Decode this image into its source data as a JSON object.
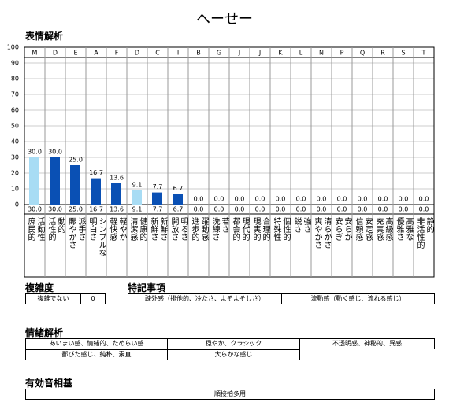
{
  "chart_data": {
    "type": "bar",
    "title": "へーせー",
    "subtitle": "表情解析",
    "categories": [
      "M",
      "D",
      "E",
      "A",
      "F",
      "D",
      "C",
      "I",
      "B",
      "G",
      "J",
      "J",
      "K",
      "L",
      "N",
      "P",
      "Q",
      "R",
      "S",
      "T"
    ],
    "descriptions": [
      "活動性\n庶民的",
      "動的\n活性的",
      "派手さ\n賑やかさ",
      "シンプルな\n明白さ",
      "軽やか\n軽快感",
      "健康的\n清潔感",
      "新鮮さ\n新鮮さ",
      "明るさ\n開放さ",
      "躍動感\n進歩的",
      "若さ\n洗練さ",
      "現代的\n都会的",
      "合理的\n現実的",
      "個性的\n特殊性",
      "強さ\n鋭さ",
      "清らかさ\n爽やかさ",
      "安らか\n安らぎ",
      "安定感\n信頼感",
      "高級感\n充実感",
      "高雅な\n優雅さ",
      "静的\n非活性的"
    ],
    "values": [
      30,
      30,
      25,
      16.7,
      13.6,
      9.1,
      7.7,
      6.7,
      0,
      0,
      0,
      0,
      0,
      0,
      0,
      0,
      0,
      0,
      0,
      0
    ],
    "value_labels": [
      "30.0",
      "30.0",
      "25.0",
      "16.7",
      "13.6",
      "9.1",
      "7.7",
      "6.7",
      "0.0",
      "0.0",
      "0.0",
      "0.0",
      "0.0",
      "0.0",
      "0.0",
      "0.0",
      "0.0",
      "0.0",
      "0.0",
      "0.0"
    ],
    "colors": [
      "#a8dcf4",
      "#0a50b4",
      "#0a50b4",
      "#0a50b4",
      "#0a50b4",
      "#a8dcf4",
      "#0a50b4",
      "#0a50b4",
      "#0a50b4",
      "#0a50b4",
      "#0a50b4",
      "#0a50b4",
      "#0a50b4",
      "#0a50b4",
      "#0a50b4",
      "#0a50b4",
      "#0a50b4",
      "#0a50b4",
      "#0a50b4",
      "#0a50b4"
    ],
    "ylim": [
      0,
      100
    ],
    "yticks": [
      0,
      10,
      20,
      30,
      40,
      50,
      60,
      70,
      80,
      90,
      100
    ],
    "grid": true
  },
  "complexity": {
    "title": "複雑度",
    "rows": [
      [
        "複雑でない",
        "0"
      ]
    ]
  },
  "notes": {
    "title": "特記事項",
    "rows": [
      [
        "疎外感（排他的、冷たさ、よそよそしさ）",
        "流動感（動く感じ、流れる感じ）"
      ]
    ]
  },
  "emotion": {
    "title": "情緒解析",
    "rows": [
      [
        "あいまい感、情緒的、ためらい感",
        "穏やか、クラシック",
        "不透明感、神秘的、異感"
      ],
      [
        "鄙びた感じ、純朴、素直",
        "大らかな感じ"
      ]
    ]
  },
  "phoneme": {
    "title": "有効音相基",
    "rows": [
      [
        "順接拍多用"
      ]
    ]
  }
}
